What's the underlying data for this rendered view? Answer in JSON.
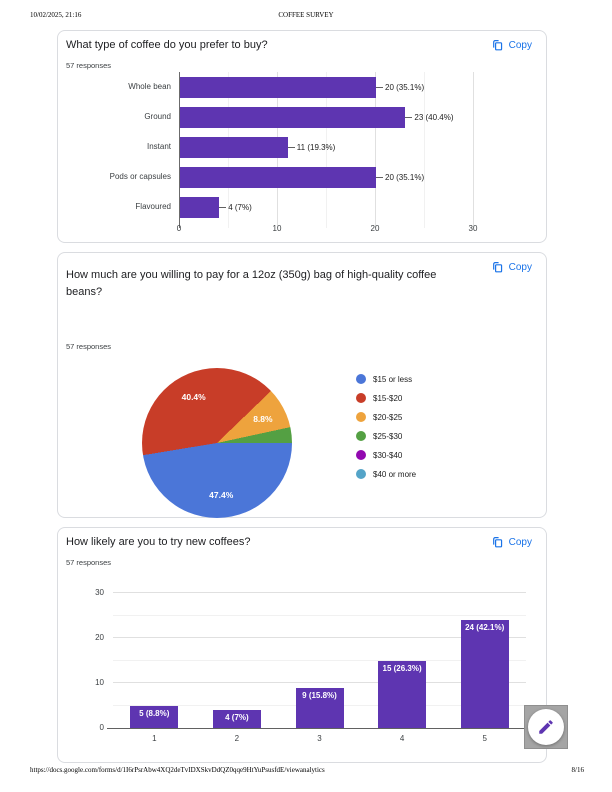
{
  "page": {
    "date": "10/02/2025, 21:16",
    "doc_title": "COFFEE SURVEY",
    "url": "https://docs.google.com/forms/d/1I6rPsrAbw4XQ2deTvIDXSkvDdQZ0qqe9HtYuPsusfdE/viewanalytics",
    "page_number": "8/16"
  },
  "colors": {
    "bar_purple": "#5e35b1",
    "accent_blue": "#1a73e8",
    "pie": [
      "#4b76d8",
      "#c83d28",
      "#eea33d",
      "#54a043",
      "#9209b0",
      "#54a4c8"
    ]
  },
  "cards": [
    {
      "question": "What type of coffee do you prefer to buy?",
      "responses": "57 responses",
      "copy_label": "Copy"
    },
    {
      "question": "How much are you willing to pay for a 12oz (350g) bag of high-quality coffee beans?",
      "responses": "57 responses",
      "copy_label": "Copy"
    },
    {
      "question": "How likely are you to try new coffees?",
      "responses": "57 responses",
      "copy_label": "Copy"
    }
  ],
  "chart_data": [
    {
      "type": "bar",
      "orientation": "horizontal",
      "title": "What type of coffee do you prefer to buy?",
      "categories": [
        "Whole bean",
        "Ground",
        "Instant",
        "Pods or capsules",
        "Flavoured"
      ],
      "values": [
        20,
        23,
        11,
        20,
        4
      ],
      "labels": [
        "20 (35.1%)",
        "23 (40.4%)",
        "11 (19.3%)",
        "20 (35.1%)",
        "4 (7%)"
      ],
      "xlabel": "",
      "ylabel": "",
      "xlim": [
        0,
        30
      ],
      "xticks": [
        0,
        10,
        20,
        30
      ],
      "grid": true
    },
    {
      "type": "pie",
      "title": "How much are you willing to pay for a 12oz (350g) bag of high-quality coffee beans?",
      "labels": [
        "$15 or less",
        "$15-$20",
        "$20-$25",
        "$25-$30",
        "$30-$40",
        "$40 or more"
      ],
      "values_pct": [
        47.4,
        40.4,
        8.8,
        3.4,
        0,
        0
      ],
      "slice_labels": [
        "47.4%",
        "40.4%",
        "8.8%",
        "",
        "",
        ""
      ],
      "legend_position": "right"
    },
    {
      "type": "bar",
      "orientation": "vertical",
      "title": "How likely are you to try new coffees?",
      "categories": [
        "1",
        "2",
        "3",
        "4",
        "5"
      ],
      "values": [
        5,
        4,
        9,
        15,
        24
      ],
      "labels": [
        "5 (8.8%)",
        "4 (7%)",
        "9 (15.8%)",
        "15 (26.3%)",
        "24 (42.1%)"
      ],
      "xlabel": "",
      "ylabel": "",
      "ylim": [
        0,
        30
      ],
      "yticks": [
        0,
        10,
        20,
        30
      ],
      "grid": true
    }
  ]
}
